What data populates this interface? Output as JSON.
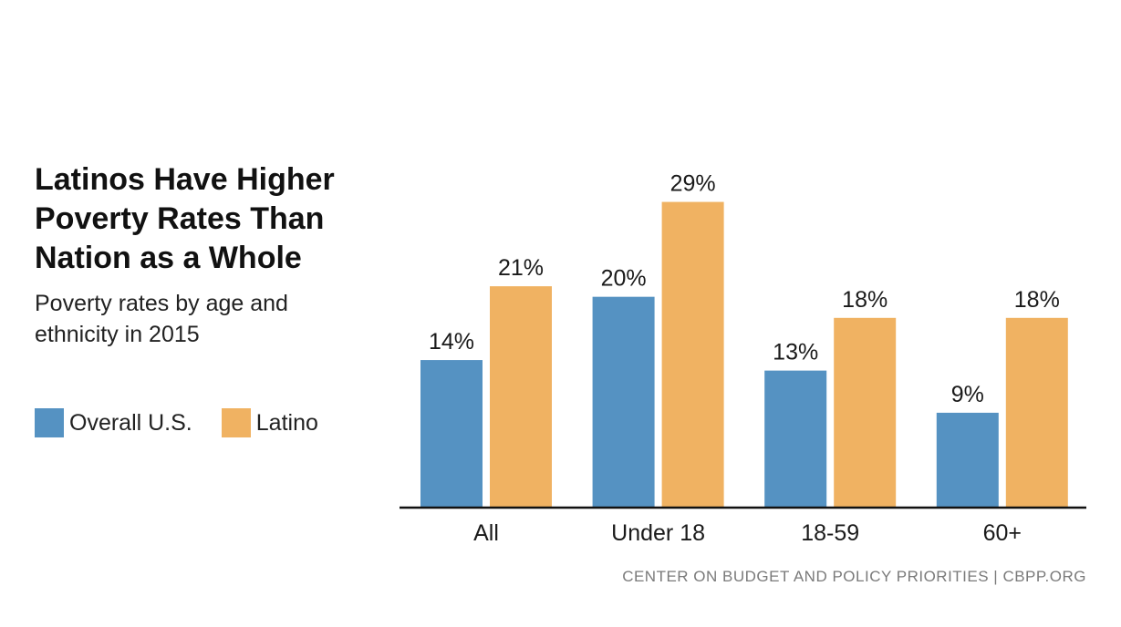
{
  "chart_data": {
    "type": "bar",
    "title": "Latinos Have Higher\nPoverty Rates Than\nNation as a Whole",
    "subtitle": "Poverty rates by age and\nethnicity in 2015",
    "categories": [
      "All",
      "Under 18",
      "18-59",
      "60+"
    ],
    "series": [
      {
        "name": "Overall U.S.",
        "color": "#5592c2",
        "values": [
          14,
          20,
          13,
          9
        ],
        "labels": [
          "14%",
          "20%",
          "13%",
          "9%"
        ]
      },
      {
        "name": "Latino",
        "color": "#f0b262",
        "values": [
          21,
          29,
          18,
          18
        ],
        "labels": [
          "21%",
          "29%",
          "18%",
          "18%"
        ]
      }
    ],
    "ylim": [
      0,
      30
    ],
    "xlabel": "",
    "ylabel": "",
    "grid": false,
    "legend_position": "left"
  },
  "source": "CENTER ON BUDGET AND POLICY PRIORITIES | CBPP.ORG"
}
